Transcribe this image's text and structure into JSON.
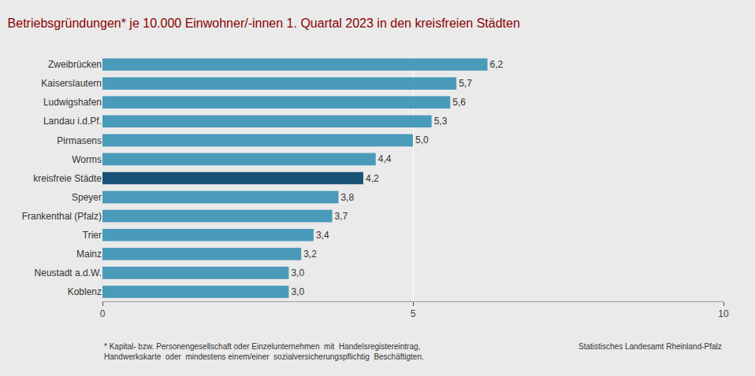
{
  "chart_data": {
    "type": "bar",
    "orientation": "horizontal",
    "title": "Betriebsgründungen* je 10.000 Einwohner/-innen 1. Quartal 2023 in den kreisfreien Städten",
    "categories": [
      "Koblenz",
      "Neustadt a.d.W.",
      "Mainz",
      "Trier",
      "Frankenthal (Pfalz)",
      "Speyer",
      "kreisfreie Städte",
      "Worms",
      "Pirmasens",
      "Landau i.d.Pf.",
      "Ludwigshafen",
      "Kaiserslautern",
      "Zweibrücken"
    ],
    "values": [
      3.0,
      3.0,
      3.2,
      3.4,
      3.7,
      3.8,
      4.2,
      4.4,
      5.0,
      5.3,
      5.6,
      5.7,
      6.2
    ],
    "value_labels": [
      "3,0",
      "3,0",
      "3,2",
      "3,4",
      "3,7",
      "3,8",
      "4,2",
      "4,4",
      "5,0",
      "5,3",
      "5,6",
      "5,7",
      "6,2"
    ],
    "data_labels": true,
    "colors": [
      "#4a9aba",
      "#4a9aba",
      "#4a9aba",
      "#4a9aba",
      "#4a9aba",
      "#4a9aba",
      "#1a5276",
      "#4a9aba",
      "#4a9aba",
      "#4a9aba",
      "#4a9aba",
      "#4a9aba",
      "#4a9aba"
    ],
    "xlim": [
      0,
      10
    ],
    "xticks": [
      0,
      5,
      10
    ],
    "grid": true,
    "footnote": [
      "* Kapital- bzw. Personengesellschaft oder Einzelunternehmen  mit  Handelsregistereintrag,",
      "Handwerkskarte  oder  mindestens einem/einer  sozialversicherungspflichtig  Beschäftigten."
    ],
    "source": "Statistisches Landesamt Rheinland-Pfalz"
  }
}
